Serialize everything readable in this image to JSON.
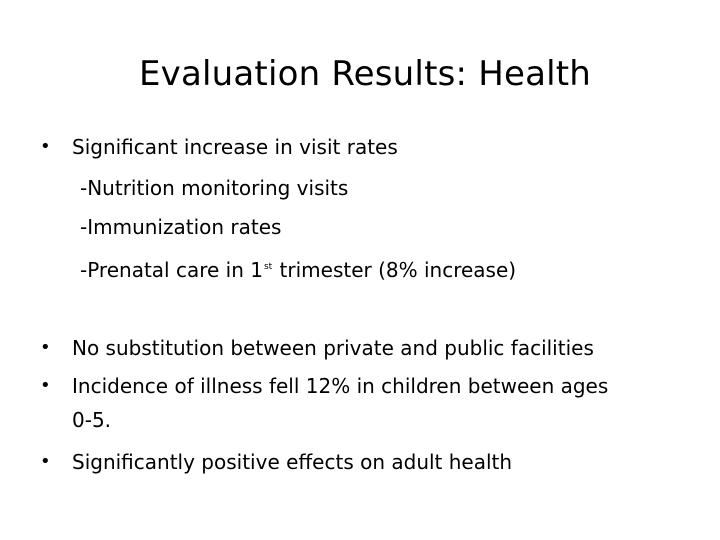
{
  "slide": {
    "title": "Evaluation Results: Health",
    "bullet_symbol": "•",
    "bullet1": {
      "text": "Significant increase in visit rates",
      "sub1": "-Nutrition monitoring visits",
      "sub2": "-Immunization rates",
      "sub3_before": "-Prenatal care in 1",
      "sub3_sup": "st",
      "sub3_after": " trimester (8% increase)"
    },
    "bullet2": "No substitution between private and public facilities",
    "bullet3_line1": "Incidence of illness fell 12%  in children between ages",
    "bullet3_line2": "0-5.",
    "bullet4": "Significantly positive effects on adult health"
  }
}
